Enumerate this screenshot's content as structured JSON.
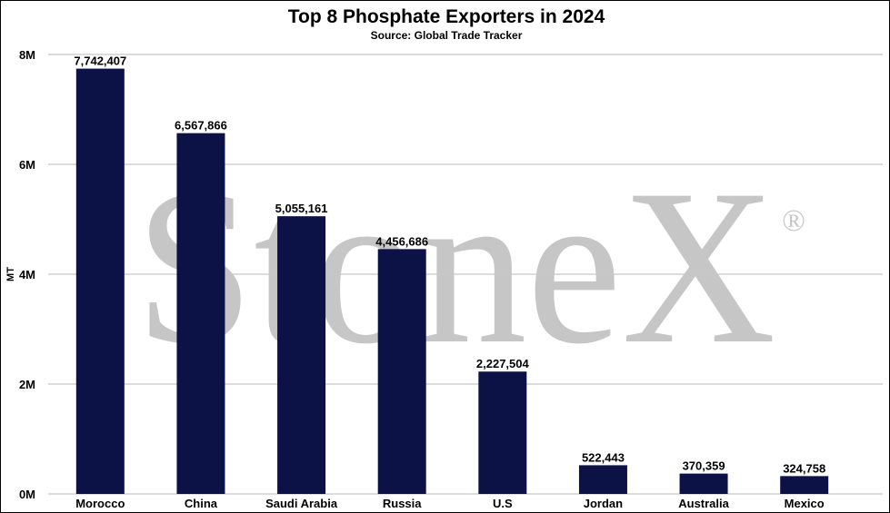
{
  "watermark": {
    "text": "StoneX",
    "mark": "®",
    "color": "#c6c6c6"
  },
  "chart_data": {
    "type": "bar",
    "title": "Top 8 Phosphate Exporters in 2024",
    "subtitle": "Source: Global Trade Tracker",
    "ylabel": "MT",
    "xlabel": "",
    "ylim": [
      0,
      8000000
    ],
    "yticks": [
      0,
      2000000,
      4000000,
      6000000,
      8000000
    ],
    "ytick_labels": [
      "0M",
      "2M",
      "4M",
      "6M",
      "8M"
    ],
    "grid": true,
    "bar_color": "#0c1245",
    "categories": [
      "Morocco",
      "China",
      "Saudi Arabia",
      "Russia",
      "U.S",
      "Jordan",
      "Australia",
      "Mexico"
    ],
    "values": [
      7742407,
      6567866,
      5055161,
      4456686,
      2227504,
      522443,
      370359,
      324758
    ],
    "value_labels": [
      "7,742,407",
      "6,567,866",
      "5,055,161",
      "4,456,686",
      "2,227,504",
      "522,443",
      "370,359",
      "324,758"
    ]
  }
}
